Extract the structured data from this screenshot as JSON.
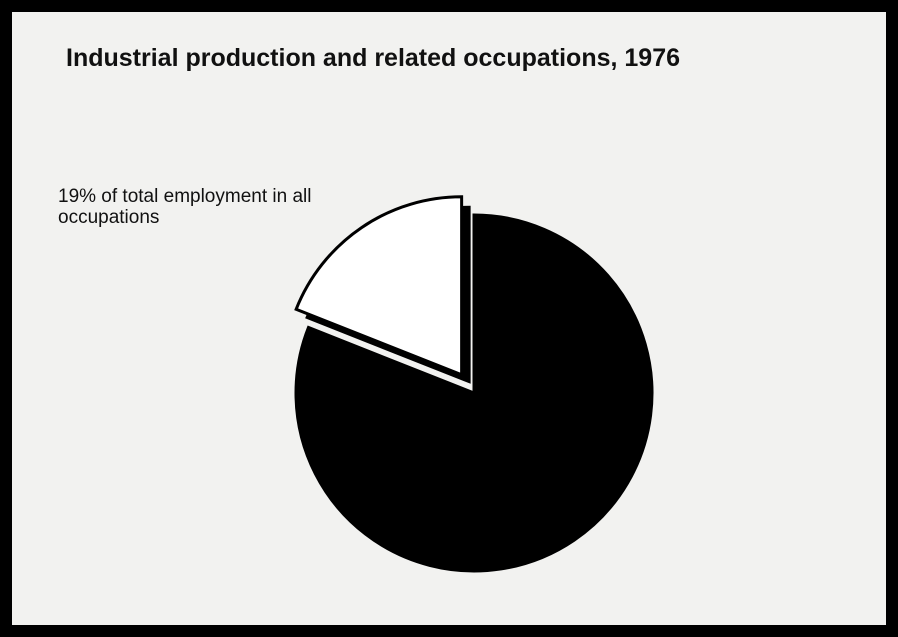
{
  "chart_data": {
    "type": "pie",
    "title": "Industrial production and related occupations, 1976",
    "values": [
      19,
      81
    ],
    "value_labels": [
      "19% of total employment in all occupations",
      null
    ],
    "colors": [
      "#ffffff",
      "#000000"
    ]
  }
}
